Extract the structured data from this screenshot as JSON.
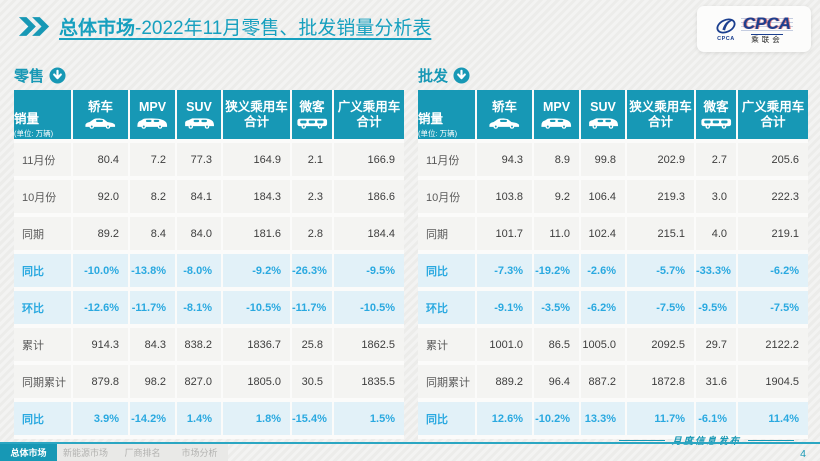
{
  "page": {
    "title_strong": "总体市场",
    "title_rest": "-2022年11月零售、批发销量分析表",
    "footer_note": "月度信息发布",
    "page_number": "4",
    "watermark": "CPCA"
  },
  "logo": {
    "main_text": "CPCA",
    "mark_text": "CPCA",
    "sub_text": "乘联会"
  },
  "columns": {
    "sales_label": "销量",
    "sales_unit": "(单位: 万辆)",
    "vehicle_columns": [
      {
        "label": "轿车",
        "icon": "sedan-icon"
      },
      {
        "label": "MPV",
        "icon": "mpv-icon"
      },
      {
        "label": "SUV",
        "icon": "suv-icon"
      },
      {
        "label": "狭义乘用车\n合计",
        "icon": null
      },
      {
        "label": "微客",
        "icon": "van-icon"
      },
      {
        "label": "广义乘用车\n合计",
        "icon": null
      }
    ]
  },
  "retail": {
    "section_label": "零售",
    "rows": [
      {
        "label": "11月份",
        "type": "value",
        "values": [
          "80.4",
          "7.2",
          "77.3",
          "164.9",
          "2.1",
          "166.9"
        ]
      },
      {
        "label": "10月份",
        "type": "value",
        "values": [
          "92.0",
          "8.2",
          "84.1",
          "184.3",
          "2.3",
          "186.6"
        ]
      },
      {
        "label": "同期",
        "type": "value",
        "values": [
          "89.2",
          "8.4",
          "84.0",
          "181.6",
          "2.8",
          "184.4"
        ]
      },
      {
        "label": "同比",
        "type": "percent",
        "values": [
          "-10.0%",
          "-13.8%",
          "-8.0%",
          "-9.2%",
          "-26.3%",
          "-9.5%"
        ]
      },
      {
        "label": "环比",
        "type": "percent",
        "values": [
          "-12.6%",
          "-11.7%",
          "-8.1%",
          "-10.5%",
          "-11.7%",
          "-10.5%"
        ]
      },
      {
        "label": "累计",
        "type": "value",
        "values": [
          "914.3",
          "84.3",
          "838.2",
          "1836.7",
          "25.8",
          "1862.5"
        ]
      },
      {
        "label": "同期累计",
        "type": "value",
        "values": [
          "879.8",
          "98.2",
          "827.0",
          "1805.0",
          "30.5",
          "1835.5"
        ]
      },
      {
        "label": "同比",
        "type": "percent",
        "values": [
          "3.9%",
          "-14.2%",
          "1.4%",
          "1.8%",
          "-15.4%",
          "1.5%"
        ]
      }
    ]
  },
  "wholesale": {
    "section_label": "批发",
    "rows": [
      {
        "label": "11月份",
        "type": "value",
        "values": [
          "94.3",
          "8.9",
          "99.8",
          "202.9",
          "2.7",
          "205.6"
        ]
      },
      {
        "label": "10月份",
        "type": "value",
        "values": [
          "103.8",
          "9.2",
          "106.4",
          "219.3",
          "3.0",
          "222.3"
        ]
      },
      {
        "label": "同期",
        "type": "value",
        "values": [
          "101.7",
          "11.0",
          "102.4",
          "215.1",
          "4.0",
          "219.1"
        ]
      },
      {
        "label": "同比",
        "type": "percent",
        "values": [
          "-7.3%",
          "-19.2%",
          "-2.6%",
          "-5.7%",
          "-33.3%",
          "-6.2%"
        ]
      },
      {
        "label": "环比",
        "type": "percent",
        "values": [
          "-9.1%",
          "-3.5%",
          "-6.2%",
          "-7.5%",
          "-9.5%",
          "-7.5%"
        ]
      },
      {
        "label": "累计",
        "type": "value",
        "values": [
          "1001.0",
          "86.5",
          "1005.0",
          "2092.5",
          "29.7",
          "2122.2"
        ]
      },
      {
        "label": "同期累计",
        "type": "value",
        "values": [
          "889.2",
          "96.4",
          "887.2",
          "1872.8",
          "31.6",
          "1904.5"
        ]
      },
      {
        "label": "同比",
        "type": "percent",
        "values": [
          "12.6%",
          "-10.2%",
          "13.3%",
          "11.7%",
          "-6.1%",
          "11.4%"
        ]
      }
    ]
  },
  "tabs": [
    {
      "label": "总体市场",
      "active": true
    },
    {
      "label": "新能源市场",
      "active": false
    },
    {
      "label": "厂商排名",
      "active": false
    },
    {
      "label": "市场分析",
      "active": false
    }
  ],
  "colors": {
    "teal": "#1798b5",
    "percent_blue": "#2aa9e0",
    "percent_row_bg": "#e2f1f8",
    "value_row_bg": "#f4f4f2",
    "logo_blue": "#1b3f8f"
  }
}
